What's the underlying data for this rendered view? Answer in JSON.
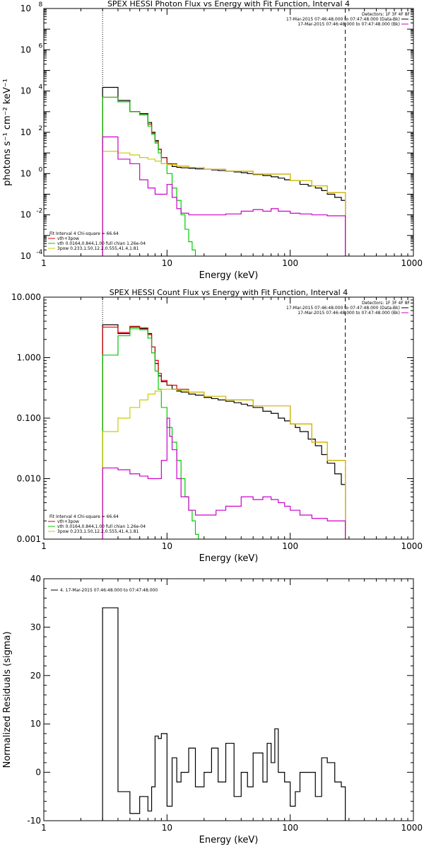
{
  "chart_data": [
    {
      "type": "line",
      "title": "SPEX HESSI Photon Flux vs Energy with Fit Function, Interval 4",
      "xlabel": "Energy (keV)",
      "ylabel": "photons s⁻¹ cm⁻² keV⁻¹",
      "xscale": "log",
      "yscale": "log",
      "xlim": [
        1,
        1000
      ],
      "ylim": [
        0.0001,
        100000000
      ],
      "x_ticks": [
        "1",
        "10",
        "100",
        "1000"
      ],
      "y_ticks": [
        {
          "base": "10",
          "exp": "-4"
        },
        {
          "base": "10",
          "exp": "-2"
        },
        {
          "base": "10",
          "exp": "0"
        },
        {
          "base": "10",
          "exp": "2"
        },
        {
          "base": "10",
          "exp": "4"
        },
        {
          "base": "10",
          "exp": "6"
        },
        {
          "base": "10",
          "exp": "8"
        }
      ],
      "legend_tr": {
        "header": "Detectors: 1F 3F 4F 8F",
        "entries": [
          {
            "label": "17-Mar-2015 07:46:48.000 to 07:47:48.000 (Data-Bk)",
            "color": "#000000"
          },
          {
            "label": "17-Mar-2015 07:46:48.000 to 07:47:48.000 (Bk)",
            "color": "#cc00cc"
          }
        ]
      },
      "legend_bl": {
        "header": "Fit Interval 4   Chi-square = 66.64",
        "entries": [
          {
            "label": "vth+3pow",
            "color": "#dd0000"
          },
          {
            "label": "vth 0.0164,0.844,1.00  full chian 1.26e-04",
            "color": "#00cc00"
          },
          {
            "label": "3pow 0.233,1.50,12.2,0.555,41.4,1.81",
            "color": "#cccc00"
          }
        ]
      },
      "vlines": [
        {
          "x": 3,
          "style": "dotted",
          "color": "#000000"
        },
        {
          "x": 280,
          "style": "dashed",
          "color": "#000000"
        }
      ],
      "series": [
        {
          "name": "Data-Bk",
          "color": "#000000",
          "x": [
            3,
            4,
            5,
            6,
            7,
            7.5,
            8,
            8.5,
            9,
            10,
            11,
            12,
            13,
            15,
            17,
            20,
            23,
            26,
            30,
            35,
            40,
            45,
            50,
            60,
            70,
            80,
            90,
            100,
            120,
            140,
            160,
            180,
            200,
            230,
            260,
            280
          ],
          "y": [
            15000,
            3500,
            1000,
            800,
            300,
            100,
            40,
            15,
            6,
            3,
            2.2,
            2,
            1.9,
            1.8,
            1.7,
            1.6,
            1.5,
            1.4,
            1.3,
            1.2,
            1.1,
            1,
            0.9,
            0.8,
            0.7,
            0.6,
            0.5,
            0.45,
            0.3,
            0.25,
            0.2,
            0.15,
            0.1,
            0.07,
            0.05,
            0.04
          ]
        },
        {
          "name": "vth+3pow",
          "color": "#dd0000",
          "x": [
            3,
            4,
            5,
            6,
            7,
            7.5,
            8,
            8.5,
            9,
            10,
            12,
            15,
            20,
            30,
            50,
            100,
            150,
            200,
            280
          ],
          "y": [
            5000,
            3000,
            1000,
            700,
            250,
            90,
            35,
            15,
            6,
            3,
            2.3,
            2,
            1.6,
            1.3,
            0.95,
            0.45,
            0.25,
            0.12,
            0.04
          ]
        },
        {
          "name": "vth",
          "color": "#00cc00",
          "x": [
            3,
            4,
            5,
            6,
            7,
            7.5,
            8,
            8.5,
            9,
            10,
            11,
            12,
            13,
            14,
            15,
            16,
            17
          ],
          "y": [
            5000,
            3000,
            1000,
            700,
            200,
            80,
            30,
            10,
            3,
            1,
            0.2,
            0.05,
            0.01,
            0.002,
            0.0005,
            0.0002,
            0.0001
          ]
        },
        {
          "name": "3pow",
          "color": "#cccc00",
          "x": [
            3,
            4,
            5,
            6,
            7,
            8,
            9,
            10,
            12,
            15,
            20,
            30,
            50,
            100,
            150,
            200,
            280
          ],
          "y": [
            12,
            10,
            8,
            6,
            5,
            4,
            3,
            2.7,
            2.3,
            2,
            1.6,
            1.3,
            0.95,
            0.45,
            0.25,
            0.12,
            0.04
          ]
        },
        {
          "name": "Bk",
          "color": "#cc00cc",
          "x": [
            3,
            4,
            5,
            6,
            7,
            8,
            9,
            10,
            11,
            12,
            13,
            15,
            17,
            20,
            25,
            30,
            40,
            50,
            60,
            70,
            80,
            100,
            120,
            150,
            200,
            280
          ],
          "y": [
            60,
            5,
            3,
            0.5,
            0.2,
            0.1,
            0.1,
            0.3,
            0.07,
            0.02,
            0.012,
            0.01,
            0.01,
            0.01,
            0.01,
            0.011,
            0.015,
            0.018,
            0.015,
            0.02,
            0.015,
            0.012,
            0.011,
            0.01,
            0.009,
            0.008
          ]
        }
      ]
    },
    {
      "type": "line",
      "title": "SPEX HESSI Count Flux vs Energy with Fit Function, Interval 4",
      "xlabel": "Energy (keV)",
      "ylabel": "",
      "xscale": "log",
      "yscale": "log",
      "xlim": [
        1,
        1000
      ],
      "ylim": [
        0.001,
        10
      ],
      "x_ticks": [
        "1",
        "10",
        "100",
        "1000"
      ],
      "y_ticks": [
        "0.001",
        "0.010",
        "0.100",
        "1.000",
        "10.000"
      ],
      "legend_tr": {
        "header": "Detectors: 1F 3F 4F 8F",
        "entries": [
          {
            "label": "17-Mar-2015 07:46:48.000 to 07:47:48.000 (Data-Bk)",
            "color": "#000000"
          },
          {
            "label": "17-Mar-2015 07:46:48.000 to 07:47:48.000 (Bk)",
            "color": "#cc00cc"
          }
        ]
      },
      "legend_bl": {
        "header": "Fit Interval 4   Chi-square = 66.64",
        "entries": [
          {
            "label": "vth+3pow",
            "color": "#dd0000"
          },
          {
            "label": "vth 0.0164,0.844,1.00  full chian 1.26e-04",
            "color": "#00cc00"
          },
          {
            "label": "3pow 0.233,1.50,12.2,0.555,41.4,1.81",
            "color": "#cccc00"
          }
        ]
      },
      "vlines": [
        {
          "x": 3,
          "style": "dotted",
          "color": "#000000"
        },
        {
          "x": 280,
          "style": "dashed",
          "color": "#000000"
        }
      ],
      "series": [
        {
          "name": "Data-Bk",
          "color": "#000000",
          "x": [
            3,
            4,
            5,
            6,
            7,
            7.5,
            8,
            8.5,
            9,
            10,
            11,
            12,
            13,
            15,
            17,
            20,
            23,
            26,
            30,
            35,
            40,
            45,
            50,
            60,
            70,
            80,
            90,
            100,
            110,
            120,
            140,
            160,
            180,
            200,
            230,
            260,
            280
          ],
          "y": [
            3.5,
            2.5,
            3.2,
            3.0,
            2.5,
            1.5,
            0.8,
            0.5,
            0.4,
            0.35,
            0.3,
            0.28,
            0.27,
            0.25,
            0.24,
            0.22,
            0.21,
            0.2,
            0.19,
            0.18,
            0.17,
            0.16,
            0.15,
            0.13,
            0.12,
            0.1,
            0.09,
            0.08,
            0.07,
            0.06,
            0.045,
            0.035,
            0.025,
            0.018,
            0.012,
            0.008,
            0.006
          ]
        },
        {
          "name": "vth+3pow",
          "color": "#dd0000",
          "x": [
            3,
            4,
            5,
            6,
            7,
            7.5,
            8,
            8.5,
            9,
            10,
            12,
            15,
            20,
            30,
            50,
            100,
            150,
            200,
            280
          ],
          "y": [
            3.2,
            2.6,
            3.3,
            3.1,
            2.4,
            1.5,
            0.9,
            0.55,
            0.42,
            0.35,
            0.3,
            0.27,
            0.23,
            0.2,
            0.16,
            0.08,
            0.04,
            0.02,
            0.007
          ]
        },
        {
          "name": "vth",
          "color": "#00cc00",
          "x": [
            3,
            4,
            5,
            6,
            7,
            7.5,
            8,
            8.5,
            9,
            10,
            11,
            12,
            13,
            14,
            15,
            16,
            17,
            18
          ],
          "y": [
            1.1,
            2.3,
            3.0,
            2.9,
            2.1,
            1.2,
            0.6,
            0.3,
            0.15,
            0.07,
            0.04,
            0.02,
            0.01,
            0.005,
            0.003,
            0.002,
            0.0012,
            0.001
          ]
        },
        {
          "name": "3pow",
          "color": "#cccc00",
          "x": [
            3,
            4,
            5,
            6,
            7,
            8,
            9,
            10,
            12,
            15,
            20,
            30,
            50,
            100,
            150,
            200,
            280
          ],
          "y": [
            0.06,
            0.1,
            0.15,
            0.2,
            0.25,
            0.28,
            0.3,
            0.3,
            0.29,
            0.27,
            0.23,
            0.2,
            0.16,
            0.08,
            0.04,
            0.02,
            0.007
          ]
        },
        {
          "name": "Bk",
          "color": "#cc00cc",
          "x": [
            3,
            4,
            5,
            6,
            7,
            8,
            9,
            10,
            10.5,
            11,
            12,
            13,
            15,
            17,
            20,
            25,
            30,
            40,
            50,
            60,
            70,
            80,
            90,
            100,
            120,
            150,
            200,
            280
          ],
          "y": [
            0.015,
            0.014,
            0.012,
            0.011,
            0.01,
            0.01,
            0.02,
            0.1,
            0.05,
            0.03,
            0.01,
            0.005,
            0.003,
            0.0025,
            0.0025,
            0.003,
            0.0035,
            0.005,
            0.0045,
            0.005,
            0.0045,
            0.004,
            0.0035,
            0.003,
            0.0025,
            0.0022,
            0.002,
            0.002
          ]
        }
      ]
    },
    {
      "type": "line",
      "title": "",
      "xlabel": "Energy (keV)",
      "ylabel": "Normalized Residuals (sigma)",
      "xscale": "log",
      "yscale": "linear",
      "xlim": [
        1,
        1000
      ],
      "ylim": [
        -10,
        40
      ],
      "x_ticks": [
        "1",
        "10",
        "100",
        "1000"
      ],
      "y_ticks": [
        "-10",
        "0",
        "10",
        "20",
        "30",
        "40"
      ],
      "legend_tl": {
        "entries": [
          {
            "label": "4. 17-Mar-2015 07:46:48.000 to 07:47:48.000",
            "color": "#000000"
          }
        ]
      },
      "series": [
        {
          "name": "",
          "color": "#000000",
          "x": [
            3,
            4,
            5,
            6,
            7,
            7.5,
            8,
            8.5,
            9,
            10,
            11,
            12,
            13,
            15,
            17,
            20,
            23,
            26,
            30,
            35,
            40,
            45,
            50,
            60,
            65,
            70,
            75,
            80,
            90,
            100,
            110,
            120,
            140,
            160,
            180,
            200,
            230,
            260,
            280
          ],
          "y": [
            34,
            -4,
            -8.5,
            -5,
            -8,
            -3,
            7.5,
            7,
            8,
            -7,
            3,
            -2,
            0,
            5,
            -3,
            0,
            5,
            -2,
            6,
            -5,
            0,
            -3,
            4,
            -2,
            6,
            2,
            9,
            0,
            -2,
            -7,
            -4,
            0,
            0,
            -5,
            3,
            2,
            -2,
            -3,
            -10
          ]
        }
      ]
    }
  ]
}
